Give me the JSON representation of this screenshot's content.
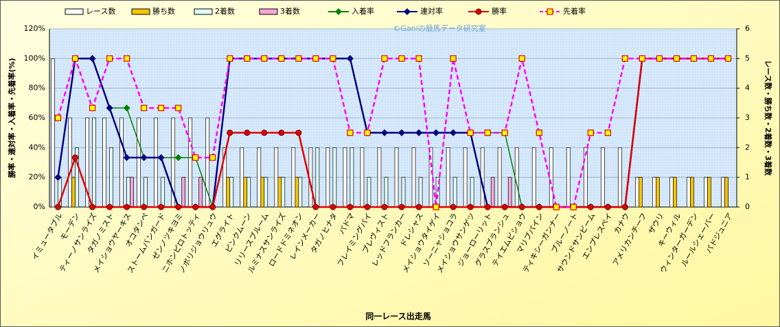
{
  "chart_data": {
    "type": "combo",
    "annotation": "©Ganiの競馬データ研究室",
    "x_label": "同一レース出走馬",
    "y_label": "勝率・連対率・入着率・先着率(%)",
    "y2_label": "レース数・勝ち数・2着数・3着数",
    "categories": [
      "イミュータブル",
      "モーデン",
      "ティーノサンライズ",
      "タガノミスト",
      "メイショウヤーキス",
      "オコタンペ",
      "ストームバンガード",
      "ゼンノツキヨミ",
      "ニホンピロトッティ",
      "ノボリジョウリュウ",
      "エグライト",
      "ピンクムーン",
      "リリースブルーム",
      "ルミナスサンライズ",
      "ロードドミネオン",
      "レインメーカー",
      "タガノヒナタ",
      "パドマ",
      "フレイミングパイ",
      "プレヴィスト",
      "レッドフランカー",
      "ドレシャス",
      "メイショウタイゲイ",
      "ソーニャショコラ",
      "メイショウサンゲツ",
      "ジョーローリット",
      "グラスブランシュ",
      "テイエムビショウ",
      "マリブパイン",
      "ティキシーガンナー",
      "ブルーノート",
      "サウンドサンビーム",
      "エンプレスペイ",
      "カナウ",
      "アメリカンチーフ",
      "ザウリ",
      "キーウィル",
      "ウィンターガーデン",
      "ルールシェーバー",
      "パドジュニア"
    ],
    "series": [
      {
        "name": "レース数",
        "kind": "bar",
        "axis": "y2",
        "color": "#ffffff",
        "values": [
          5,
          3,
          3,
          3,
          3,
          3,
          3,
          3,
          3,
          3,
          2,
          2,
          2,
          2,
          2,
          2,
          2,
          2,
          2,
          2,
          2,
          2,
          2,
          2,
          2,
          2,
          2,
          2,
          2,
          2,
          2,
          2,
          2,
          2,
          1,
          1,
          1,
          1,
          1,
          1
        ]
      },
      {
        "name": "勝ち数",
        "kind": "bar",
        "axis": "y2",
        "color": "#f5c400",
        "values": [
          0,
          1,
          0,
          0,
          0,
          0,
          0,
          0,
          0,
          0,
          1,
          1,
          1,
          1,
          1,
          0,
          0,
          0,
          0,
          0,
          0,
          0,
          0,
          0,
          0,
          0,
          0,
          0,
          0,
          0,
          0,
          0,
          0,
          0,
          1,
          1,
          1,
          1,
          1,
          1
        ]
      },
      {
        "name": "2着数",
        "kind": "bar",
        "axis": "y2",
        "color": "#e0ffff",
        "values": [
          1,
          2,
          3,
          2,
          1,
          1,
          1,
          0,
          0,
          0,
          1,
          1,
          1,
          1,
          1,
          2,
          2,
          2,
          1,
          1,
          1,
          1,
          1,
          1,
          1,
          0,
          0,
          0,
          0,
          0,
          0,
          0,
          0,
          0,
          0,
          0,
          0,
          0,
          0,
          0
        ]
      },
      {
        "name": "3着数",
        "kind": "bar",
        "axis": "y2",
        "color": "#f4a6d7",
        "values": [
          0,
          0,
          0,
          0,
          1,
          0,
          0,
          1,
          1,
          0,
          0,
          0,
          0,
          0,
          0,
          0,
          0,
          0,
          0,
          0,
          0,
          0,
          0,
          0,
          0,
          1,
          1,
          0,
          0,
          0,
          0,
          0,
          0,
          0,
          0,
          0,
          0,
          0,
          0,
          0
        ]
      },
      {
        "name": "入着率",
        "kind": "line",
        "color": "#008000",
        "marker": "diamond",
        "values": [
          20,
          100,
          100,
          66.7,
          66.7,
          33.3,
          33.3,
          33.3,
          33.3,
          0,
          100,
          100,
          100,
          100,
          100,
          100,
          100,
          100,
          50,
          50,
          50,
          50,
          50,
          50,
          50,
          50,
          50,
          0,
          0,
          0,
          0,
          0,
          0,
          0,
          100,
          100,
          100,
          100,
          100,
          100
        ]
      },
      {
        "name": "連対率",
        "kind": "line",
        "color": "#000080",
        "marker": "diamond",
        "values": [
          20,
          100,
          100,
          66.7,
          33.3,
          33.3,
          33.3,
          0,
          0,
          0,
          100,
          100,
          100,
          100,
          100,
          100,
          100,
          100,
          50,
          50,
          50,
          50,
          50,
          50,
          50,
          0,
          0,
          0,
          0,
          0,
          0,
          0,
          0,
          0,
          100,
          100,
          100,
          100,
          100,
          100
        ]
      },
      {
        "name": "勝率",
        "kind": "line",
        "color": "#e00000",
        "marker": "circle",
        "values": [
          0,
          33.3,
          0,
          0,
          0,
          0,
          0,
          0,
          0,
          0,
          50,
          50,
          50,
          50,
          50,
          0,
          0,
          0,
          0,
          0,
          0,
          0,
          0,
          0,
          0,
          0,
          0,
          0,
          0,
          0,
          0,
          0,
          0,
          0,
          100,
          100,
          100,
          100,
          100,
          100
        ]
      },
      {
        "name": "先着率",
        "kind": "line",
        "color": "#ff00ff",
        "marker": "square",
        "dash": true,
        "values": [
          60,
          100,
          66.7,
          100,
          100,
          66.7,
          66.7,
          66.7,
          33.3,
          33.3,
          100,
          100,
          100,
          100,
          100,
          100,
          100,
          50,
          50,
          100,
          100,
          100,
          0,
          100,
          50,
          50,
          50,
          100,
          50,
          0,
          0,
          50,
          50,
          100,
          100,
          100,
          100,
          100,
          100,
          100
        ]
      }
    ],
    "ylim": [
      0,
      120
    ],
    "yticks": [
      {
        "value": 0,
        "label": "0%"
      },
      {
        "value": 20,
        "label": "20%"
      },
      {
        "value": 40,
        "label": "40%"
      },
      {
        "value": 60,
        "label": "60%"
      },
      {
        "value": 80,
        "label": "80%"
      },
      {
        "value": 100,
        "label": "100%"
      },
      {
        "value": 120,
        "label": "120%"
      }
    ],
    "y2lim": [
      0,
      6
    ],
    "y2ticks": [
      0,
      1,
      2,
      3,
      4,
      5,
      6
    ],
    "grid": true
  }
}
